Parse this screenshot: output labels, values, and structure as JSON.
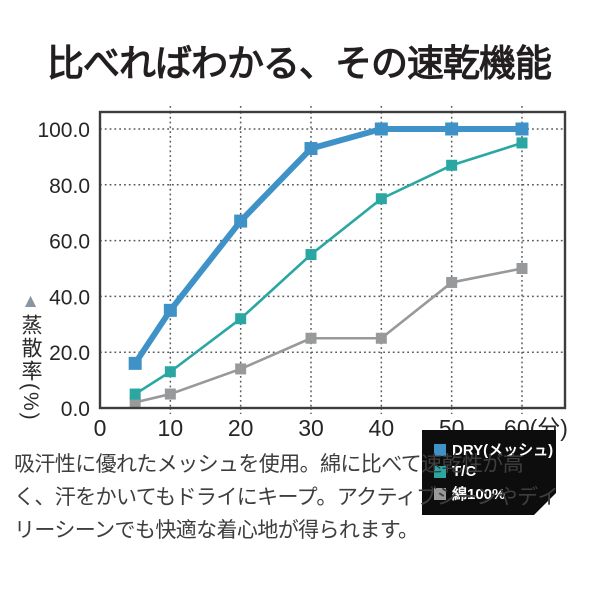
{
  "title": "比べればわかる、その速乾機能",
  "description_lines": [
    "吸汗性に優れたメッシュを使用。綿に比べて速乾性が高",
    "く、汗をかいてもドライにキープ。アクティブシーンやデイ",
    "リーシーンでも快適な着心地が得られます。"
  ],
  "colors": {
    "title": "#231F20",
    "body_text": "#3E3E3E",
    "grid": "#5B5B5B",
    "plot_border": "#3D3D3D",
    "legend_bg": "#0D0D0D",
    "legend_text": "#FFFFFF",
    "ylabel_triangle": "#8A95A3"
  },
  "chart_data": {
    "type": "line",
    "title": "",
    "ylabel": "蒸散率(%)",
    "ylabel_icon": "▲",
    "x": [
      5,
      10,
      20,
      30,
      40,
      50,
      60
    ],
    "series": [
      {
        "name": "DRY(メッシュ)",
        "color": "#3E92C8",
        "line_width": 6,
        "marker": "square",
        "marker_size": 13,
        "values": [
          16,
          35,
          67,
          93,
          100,
          100,
          100
        ]
      },
      {
        "name": "T/C",
        "color": "#2AA7A2",
        "line_width": 2.6,
        "marker": "square",
        "marker_size": 11,
        "values": [
          5,
          13,
          32,
          55,
          75,
          87,
          95
        ]
      },
      {
        "name": "綿100%",
        "color": "#97999B",
        "line_width": 2.6,
        "marker": "square",
        "marker_size": 11,
        "values": [
          2,
          5,
          14,
          25,
          25,
          45,
          50
        ]
      }
    ],
    "x_ticks": [
      0,
      10,
      20,
      30,
      40,
      50,
      60
    ],
    "x_tick_labels": [
      "0",
      "10",
      "20",
      "30",
      "40",
      "50",
      "60(分)"
    ],
    "y_ticks": [
      0,
      20,
      40,
      60,
      80,
      100
    ],
    "y_tick_labels": [
      "0.0",
      "20.0",
      "40.0",
      "60.0",
      "80.0",
      "100.0"
    ],
    "xlim": [
      0,
      66
    ],
    "ylim": [
      0,
      106
    ],
    "grid": true,
    "grid_style": "dotted",
    "legend_position": "lower right"
  }
}
